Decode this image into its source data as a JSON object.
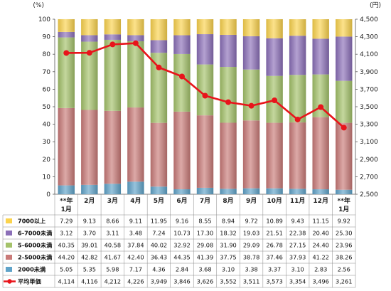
{
  "chart_data": {
    "type": "bar",
    "stacked": true,
    "left_axis_unit": "(%)",
    "right_axis_unit": "(円)",
    "ylim_left": [
      0,
      100
    ],
    "yticks_left": [
      "0",
      "10",
      "20",
      "30",
      "40",
      "50",
      "60",
      "70",
      "80",
      "90",
      "100"
    ],
    "ylim_right": [
      2500,
      4500
    ],
    "yticks_right": [
      "2,500",
      "2,700",
      "2,900",
      "3,100",
      "3,300",
      "3,500",
      "3,700",
      "3,900",
      "4,100",
      "4,300",
      "4,500"
    ],
    "categories": [
      {
        "top": "**年",
        "bottom": "1月"
      },
      {
        "top": "2月",
        "bottom": ""
      },
      {
        "top": "3月",
        "bottom": ""
      },
      {
        "top": "4月",
        "bottom": ""
      },
      {
        "top": "5月",
        "bottom": ""
      },
      {
        "top": "6月",
        "bottom": ""
      },
      {
        "top": "7月",
        "bottom": ""
      },
      {
        "top": "8月",
        "bottom": ""
      },
      {
        "top": "9月",
        "bottom": ""
      },
      {
        "top": "10月",
        "bottom": ""
      },
      {
        "top": "11月",
        "bottom": ""
      },
      {
        "top": "12月",
        "bottom": ""
      },
      {
        "top": "**年",
        "bottom": "1月"
      }
    ],
    "series": [
      {
        "name": "7000以上",
        "color": "#FBD34D",
        "values": [
          7.29,
          9.13,
          8.66,
          9.11,
          11.95,
          9.16,
          8.55,
          8.94,
          9.72,
          10.89,
          9.43,
          11.15,
          9.92
        ],
        "labels": [
          "7.29",
          "9.13",
          "8.66",
          "9.11",
          "11.95",
          "9.16",
          "8.55",
          "8.94",
          "9.72",
          "10.89",
          "9.43",
          "11.15",
          "9.92"
        ]
      },
      {
        "name": "6-7000未満",
        "color": "#8B6FB8",
        "values": [
          3.12,
          3.7,
          3.11,
          3.48,
          7.24,
          10.73,
          17.3,
          18.32,
          19.03,
          21.51,
          22.38,
          20.4,
          25.3
        ],
        "labels": [
          "3.12",
          "3.70",
          "3.11",
          "3.48",
          "7.24",
          "10.73",
          "17.30",
          "18.32",
          "19.03",
          "21.51",
          "22.38",
          "20.40",
          "25.30"
        ]
      },
      {
        "name": "5-6000未満",
        "color": "#A4C26A",
        "values": [
          40.35,
          39.01,
          40.58,
          37.84,
          40.02,
          32.92,
          29.08,
          31.9,
          29.09,
          26.78,
          27.15,
          24.4,
          23.96
        ],
        "labels": [
          "40.35",
          "39.01",
          "40.58",
          "37.84",
          "40.02",
          "32.92",
          "29.08",
          "31.90",
          "29.09",
          "26.78",
          "27.15",
          "24.40",
          "23.96"
        ]
      },
      {
        "name": "2-5000未満",
        "color": "#C97A78",
        "values": [
          44.2,
          42.82,
          41.67,
          42.4,
          36.43,
          44.35,
          41.39,
          37.75,
          38.78,
          37.46,
          37.93,
          41.22,
          38.26
        ],
        "labels": [
          "44.20",
          "42.82",
          "41.67",
          "42.40",
          "36.43",
          "44.35",
          "41.39",
          "37.75",
          "38.78",
          "37.46",
          "37.93",
          "41.22",
          "38.26"
        ]
      },
      {
        "name": "2000未満",
        "color": "#5FA3C9",
        "values": [
          5.05,
          5.35,
          5.98,
          7.17,
          4.36,
          2.84,
          3.68,
          3.1,
          3.38,
          3.37,
          3.1,
          2.83,
          2.56
        ],
        "labels": [
          "5.05",
          "5.35",
          "5.98",
          "7.17",
          "4.36",
          "2.84",
          "3.68",
          "3.10",
          "3.38",
          "3.37",
          "3.10",
          "2.83",
          "2.56"
        ]
      }
    ],
    "line_series": {
      "name": "平均単価",
      "color": "#E8141B",
      "values": [
        4114,
        4116,
        4212,
        4226,
        3949,
        3846,
        3626,
        3552,
        3511,
        3573,
        3354,
        3496,
        3261
      ],
      "labels": [
        "4,114",
        "4,116",
        "4,212",
        "4,226",
        "3,949",
        "3,846",
        "3,626",
        "3,552",
        "3,511",
        "3,573",
        "3,354",
        "3,496",
        "3,261"
      ]
    },
    "grid": false,
    "legend": "table-below"
  }
}
